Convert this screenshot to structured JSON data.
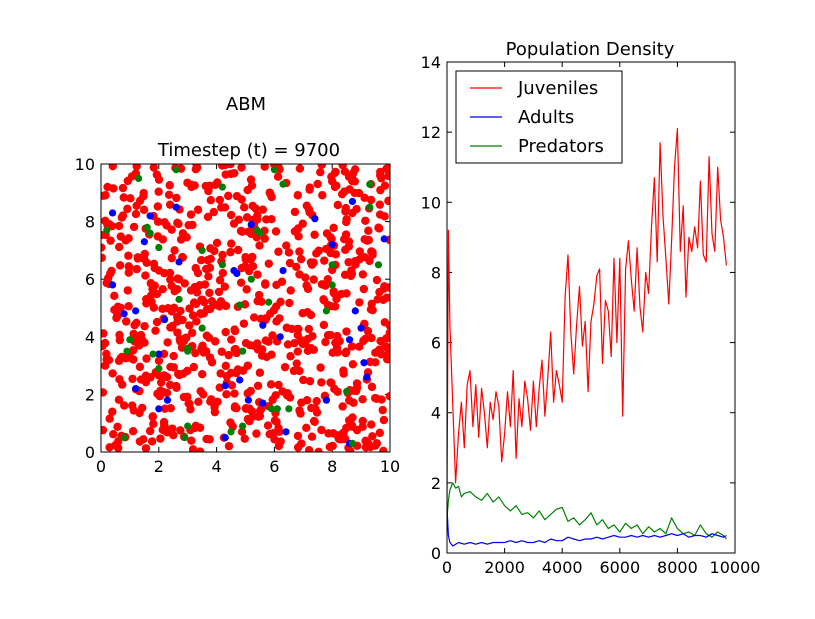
{
  "figure": {
    "left_title": "ABM",
    "left_subtitle": "Timestep (t) = 9700",
    "right_title": "Population Density"
  },
  "chart_data": [
    {
      "type": "scatter",
      "title": "ABM",
      "subtitle": "Timestep (t) = 9700",
      "xlim": [
        0,
        10
      ],
      "ylim": [
        0,
        10
      ],
      "xticks": [
        "0",
        "2",
        "4",
        "6",
        "8",
        "10"
      ],
      "yticks": [
        "0",
        "2",
        "4",
        "6",
        "8",
        "10"
      ],
      "grid": false,
      "series": [
        {
          "color": "#ff0000",
          "approx_count": 800,
          "points": []
        },
        {
          "color": "#0000ff",
          "points": [
            [
              0.4,
              8.3
            ],
            [
              1.7,
              8.2
            ],
            [
              2.6,
              8.5
            ],
            [
              1.5,
              7.3
            ],
            [
              2.7,
              6.6
            ],
            [
              0.4,
              5.8
            ],
            [
              0.8,
              4.8
            ],
            [
              1.2,
              4.9
            ],
            [
              2.2,
              4.6
            ],
            [
              1.2,
              2.2
            ],
            [
              2.0,
              3.4
            ],
            [
              2.3,
              1.8
            ],
            [
              2.0,
              1.5
            ],
            [
              4.6,
              6.3
            ],
            [
              4.7,
              6.2
            ],
            [
              5.2,
              7.9
            ],
            [
              6.3,
              6.3
            ],
            [
              5.6,
              4.4
            ],
            [
              6.2,
              4.0
            ],
            [
              7.4,
              8.1
            ],
            [
              8.0,
              7.2
            ],
            [
              8.7,
              8.7
            ],
            [
              9.8,
              7.4
            ],
            [
              8.8,
              4.9
            ],
            [
              9.0,
              4.3
            ],
            [
              8.6,
              3.9
            ],
            [
              9.1,
              3.1
            ],
            [
              9.2,
              2.6
            ],
            [
              4.3,
              2.3
            ],
            [
              4.8,
              2.5
            ],
            [
              5.1,
              1.8
            ],
            [
              5.6,
              1.7
            ],
            [
              7.8,
              1.8
            ],
            [
              6.4,
              0.7
            ],
            [
              4.3,
              0.5
            ],
            [
              8.6,
              0.3
            ]
          ]
        },
        {
          "color": "#008000",
          "points": [
            [
              1.3,
              9.5
            ],
            [
              2.6,
              9.8
            ],
            [
              0.2,
              7.7
            ],
            [
              1.6,
              7.8
            ],
            [
              1.7,
              7.6
            ],
            [
              2.0,
              7.1
            ],
            [
              5.5,
              7.6
            ],
            [
              6.0,
              9.8
            ],
            [
              4.2,
              9.2
            ],
            [
              6.3,
              9.3
            ],
            [
              9.3,
              9.3
            ],
            [
              9.3,
              8.5
            ],
            [
              9.6,
              6.5
            ],
            [
              5.4,
              7.7
            ],
            [
              3.5,
              7.0
            ],
            [
              4.2,
              6.5
            ],
            [
              5.2,
              6.0
            ],
            [
              2.7,
              5.3
            ],
            [
              8.0,
              6.5
            ],
            [
              0.9,
              3.5
            ],
            [
              1.0,
              3.9
            ],
            [
              1.8,
              3.4
            ],
            [
              2.0,
              2.9
            ],
            [
              3.0,
              3.5
            ],
            [
              3.0,
              3.6
            ],
            [
              3.5,
              4.3
            ],
            [
              4.8,
              5.1
            ],
            [
              4.9,
              3.5
            ],
            [
              5.8,
              5.2
            ],
            [
              7.8,
              4.9
            ],
            [
              8.0,
              5.8
            ],
            [
              6.5,
              1.5
            ],
            [
              5.9,
              1.5
            ],
            [
              6.1,
              1.5
            ],
            [
              3.0,
              0.9
            ],
            [
              2.9,
              0.5
            ],
            [
              4.5,
              0.7
            ],
            [
              4.9,
              0.9
            ],
            [
              0.8,
              0.5
            ],
            [
              8.7,
              0.3
            ],
            [
              8.5,
              2.1
            ]
          ]
        }
      ]
    },
    {
      "type": "line",
      "title": "Population Density",
      "xlim": [
        0,
        10000
      ],
      "ylim": [
        0,
        14
      ],
      "xticks": [
        "0",
        "2000",
        "4000",
        "6000",
        "8000",
        "10000"
      ],
      "yticks": [
        "0",
        "2",
        "4",
        "6",
        "8",
        "10",
        "12",
        "14"
      ],
      "legend_position": "top-left",
      "grid": false,
      "series": [
        {
          "name": "Juveniles",
          "color": "#ff0000",
          "x": [
            0,
            50,
            100,
            200,
            300,
            400,
            500,
            600,
            700,
            800,
            900,
            1000,
            1100,
            1200,
            1300,
            1400,
            1500,
            1600,
            1700,
            1800,
            1900,
            2000,
            2100,
            2200,
            2300,
            2400,
            2500,
            2600,
            2700,
            2800,
            2900,
            3000,
            3100,
            3200,
            3300,
            3400,
            3500,
            3600,
            3700,
            3800,
            3900,
            4000,
            4100,
            4200,
            4300,
            4400,
            4500,
            4600,
            4700,
            4800,
            4900,
            5000,
            5100,
            5200,
            5300,
            5400,
            5500,
            5600,
            5700,
            5800,
            5900,
            6000,
            6100,
            6200,
            6300,
            6400,
            6500,
            6600,
            6700,
            6800,
            6900,
            7000,
            7100,
            7200,
            7300,
            7400,
            7500,
            7600,
            7700,
            7800,
            7900,
            8000,
            8100,
            8200,
            8300,
            8400,
            8500,
            8600,
            8700,
            8800,
            8900,
            9000,
            9100,
            9200,
            9300,
            9400,
            9500,
            9600,
            9700
          ],
          "y": [
            1.5,
            9.2,
            6.5,
            4.2,
            2.0,
            3.4,
            4.3,
            3.0,
            4.8,
            5.2,
            3.6,
            4.8,
            3.3,
            4.7,
            4.0,
            3.0,
            4.3,
            3.8,
            4.6,
            4.2,
            2.6,
            3.4,
            4.6,
            3.6,
            5.2,
            2.7,
            4.4,
            3.6,
            4.9,
            4.4,
            3.5,
            4.9,
            3.6,
            4.7,
            5.5,
            3.9,
            5.0,
            6.3,
            4.3,
            5.2,
            4.8,
            4.3,
            7.3,
            8.5,
            6.3,
            5.1,
            6.5,
            7.6,
            5.9,
            6.6,
            4.6,
            6.6,
            7.1,
            7.9,
            8.1,
            5.4,
            7.2,
            6.9,
            5.6,
            8.4,
            6.0,
            8.4,
            3.9,
            8.1,
            8.9,
            7.8,
            6.9,
            8.7,
            7.0,
            6.3,
            8.0,
            7.4,
            9.3,
            10.7,
            8.3,
            11.7,
            9.6,
            8.4,
            7.1,
            8.9,
            11.0,
            12.1,
            8.6,
            9.9,
            7.3,
            9.0,
            8.6,
            9.3,
            8.7,
            10.6,
            8.5,
            8.3,
            11.3,
            9.1,
            8.6,
            11.0,
            9.5,
            9.0,
            8.2
          ]
        },
        {
          "name": "Adults",
          "color": "#0000ff",
          "x": [
            0,
            50,
            100,
            200,
            400,
            600,
            800,
            1000,
            1200,
            1400,
            1600,
            1800,
            2000,
            2200,
            2400,
            2600,
            2800,
            3000,
            3200,
            3400,
            3600,
            3800,
            4000,
            4200,
            4400,
            4600,
            4800,
            5000,
            5200,
            5400,
            5600,
            5800,
            6000,
            6200,
            6400,
            6600,
            6800,
            7000,
            7200,
            7400,
            7600,
            7800,
            8000,
            8200,
            8400,
            8600,
            8800,
            9000,
            9200,
            9400,
            9600,
            9700
          ],
          "y": [
            1.3,
            0.5,
            0.3,
            0.2,
            0.3,
            0.25,
            0.3,
            0.25,
            0.3,
            0.25,
            0.3,
            0.3,
            0.3,
            0.35,
            0.3,
            0.35,
            0.3,
            0.3,
            0.35,
            0.3,
            0.4,
            0.35,
            0.35,
            0.45,
            0.4,
            0.35,
            0.4,
            0.4,
            0.45,
            0.4,
            0.45,
            0.5,
            0.45,
            0.45,
            0.5,
            0.45,
            0.5,
            0.45,
            0.5,
            0.45,
            0.5,
            0.55,
            0.5,
            0.55,
            0.45,
            0.5,
            0.5,
            0.45,
            0.55,
            0.5,
            0.45,
            0.5
          ]
        },
        {
          "name": "Predators",
          "color": "#008000",
          "x": [
            0,
            50,
            100,
            200,
            300,
            400,
            500,
            600,
            800,
            1000,
            1200,
            1400,
            1600,
            1800,
            2000,
            2200,
            2400,
            2600,
            2800,
            3000,
            3200,
            3400,
            3600,
            3800,
            4000,
            4200,
            4400,
            4600,
            4800,
            5000,
            5200,
            5400,
            5600,
            5800,
            6000,
            6200,
            6400,
            6600,
            6800,
            7000,
            7200,
            7400,
            7600,
            7800,
            8000,
            8200,
            8400,
            8600,
            8800,
            9000,
            9200,
            9400,
            9600,
            9700
          ],
          "y": [
            1.0,
            1.5,
            1.8,
            2.0,
            1.85,
            1.9,
            1.6,
            1.7,
            1.75,
            1.6,
            1.5,
            1.7,
            1.45,
            1.6,
            1.35,
            1.2,
            1.35,
            1.1,
            1.15,
            1.0,
            1.2,
            0.95,
            1.1,
            1.25,
            1.3,
            0.9,
            1.0,
            0.8,
            0.95,
            1.15,
            0.8,
            0.95,
            0.7,
            0.8,
            0.6,
            0.85,
            0.7,
            0.8,
            0.55,
            0.75,
            0.6,
            0.7,
            0.55,
            1.0,
            0.7,
            0.55,
            0.6,
            0.5,
            0.8,
            0.55,
            0.45,
            0.6,
            0.5,
            0.4
          ]
        }
      ]
    }
  ]
}
